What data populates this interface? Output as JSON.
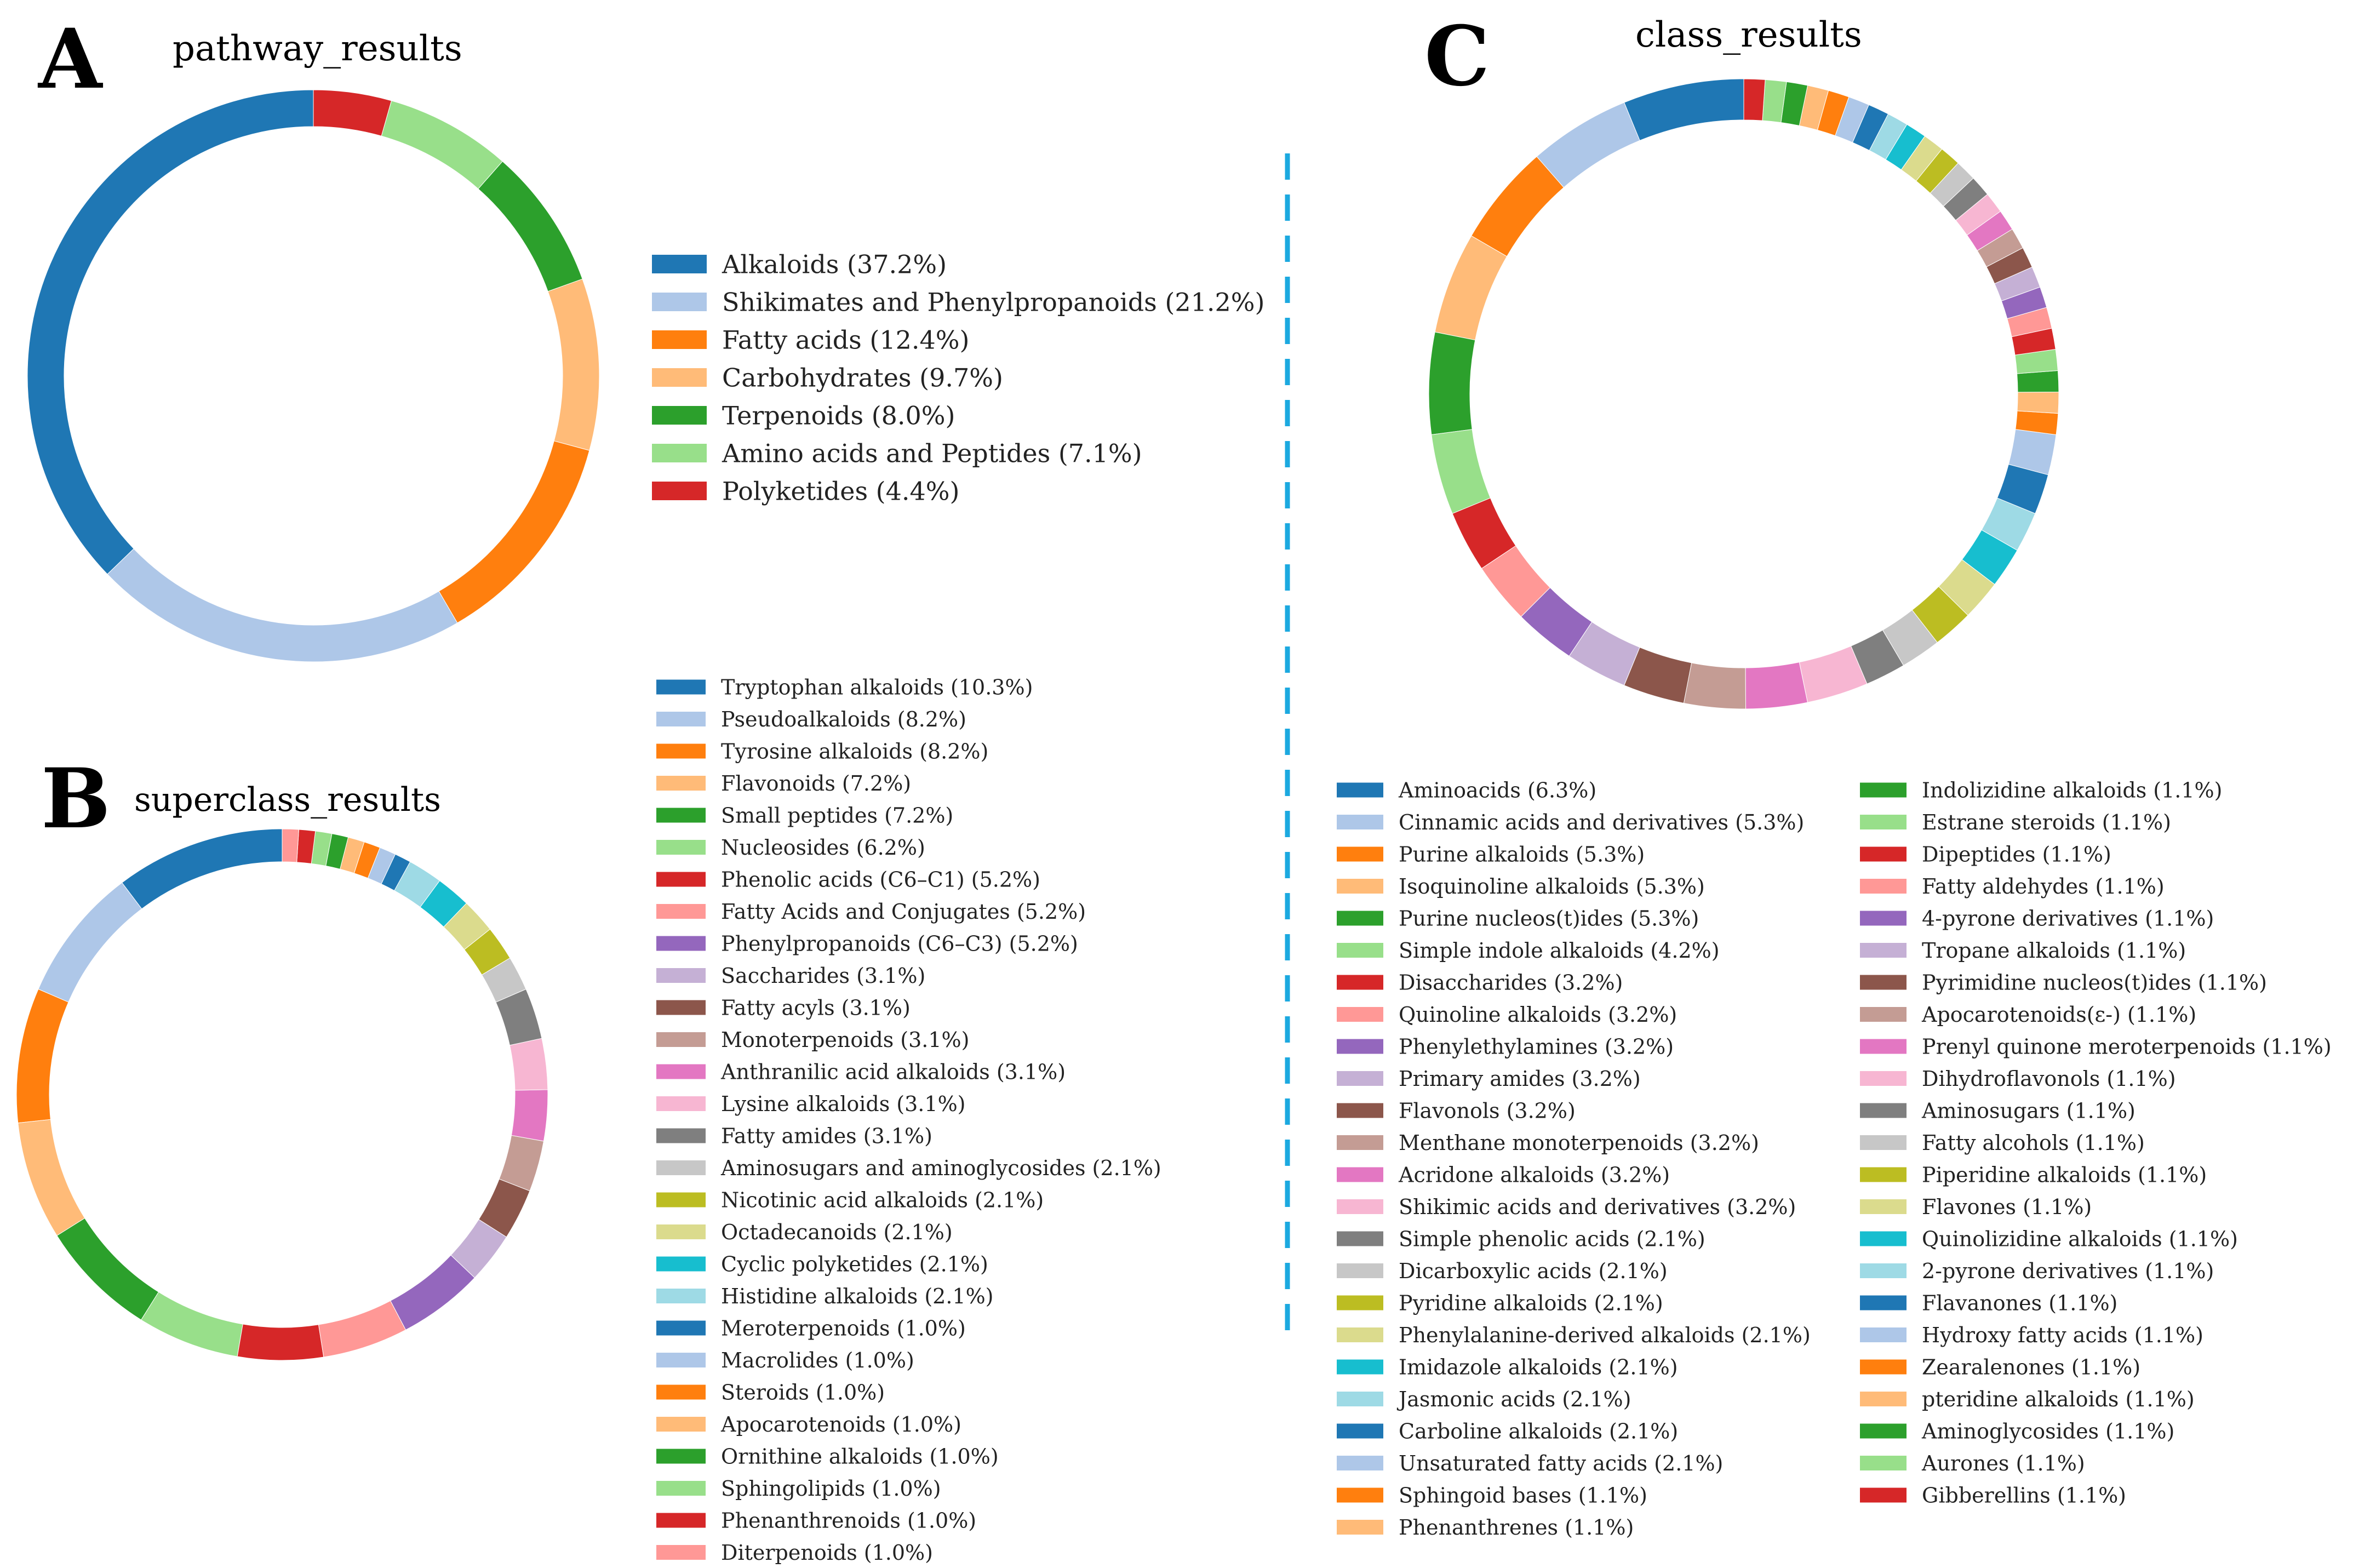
{
  "chart_data": [
    {
      "panel": "A",
      "type": "pie",
      "title": "pathway_results",
      "legend_position": "right",
      "slices": [
        {
          "label": "Alkaloids (37.2%)",
          "value": 37.2,
          "color": "#1f77b4"
        },
        {
          "label": "Shikimates and Phenylpropanoids (21.2%)",
          "value": 21.2,
          "color": "#aec7e8"
        },
        {
          "label": "Fatty acids (12.4%)",
          "value": 12.4,
          "color": "#ff7f0e"
        },
        {
          "label": "Carbohydrates (9.7%)",
          "value": 9.7,
          "color": "#ffbb78"
        },
        {
          "label": "Terpenoids (8.0%)",
          "value": 8.0,
          "color": "#2ca02c"
        },
        {
          "label": "Amino acids and Peptides (7.1%)",
          "value": 7.1,
          "color": "#98df8a"
        },
        {
          "label": "Polyketides (4.4%)",
          "value": 4.4,
          "color": "#d62728"
        }
      ]
    },
    {
      "panel": "B",
      "type": "pie",
      "title": "superclass_results",
      "legend_position": "right",
      "slices": [
        {
          "label": "Tryptophan alkaloids (10.3%)",
          "value": 10.3,
          "color": "#1f77b4"
        },
        {
          "label": "Pseudoalkaloids (8.2%)",
          "value": 8.2,
          "color": "#aec7e8"
        },
        {
          "label": "Tyrosine alkaloids (8.2%)",
          "value": 8.2,
          "color": "#ff7f0e"
        },
        {
          "label": "Flavonoids (7.2%)",
          "value": 7.2,
          "color": "#ffbb78"
        },
        {
          "label": "Small peptides (7.2%)",
          "value": 7.2,
          "color": "#2ca02c"
        },
        {
          "label": "Nucleosides (6.2%)",
          "value": 6.2,
          "color": "#98df8a"
        },
        {
          "label": "Phenolic acids (C6–C1) (5.2%)",
          "value": 5.2,
          "color": "#d62728"
        },
        {
          "label": "Fatty Acids and Conjugates (5.2%)",
          "value": 5.2,
          "color": "#ff9896"
        },
        {
          "label": "Phenylpropanoids (C6–C3) (5.2%)",
          "value": 5.2,
          "color": "#9467bd"
        },
        {
          "label": "Saccharides (3.1%)",
          "value": 3.1,
          "color": "#c5b0d5"
        },
        {
          "label": "Fatty acyls (3.1%)",
          "value": 3.1,
          "color": "#8c564b"
        },
        {
          "label": "Monoterpenoids (3.1%)",
          "value": 3.1,
          "color": "#c49c94"
        },
        {
          "label": "Anthranilic acid alkaloids (3.1%)",
          "value": 3.1,
          "color": "#e377c2"
        },
        {
          "label": "Lysine alkaloids (3.1%)",
          "value": 3.1,
          "color": "#f7b6d2"
        },
        {
          "label": "Fatty amides (3.1%)",
          "value": 3.1,
          "color": "#7f7f7f"
        },
        {
          "label": "Aminosugars and aminoglycosides (2.1%)",
          "value": 2.1,
          "color": "#c7c7c7"
        },
        {
          "label": "Nicotinic acid alkaloids (2.1%)",
          "value": 2.1,
          "color": "#bcbd22"
        },
        {
          "label": "Octadecanoids (2.1%)",
          "value": 2.1,
          "color": "#dbdb8d"
        },
        {
          "label": "Cyclic polyketides (2.1%)",
          "value": 2.1,
          "color": "#17becf"
        },
        {
          "label": "Histidine alkaloids (2.1%)",
          "value": 2.1,
          "color": "#9edae5"
        },
        {
          "label": "Meroterpenoids (1.0%)",
          "value": 1.0,
          "color": "#1f77b4"
        },
        {
          "label": "Macrolides (1.0%)",
          "value": 1.0,
          "color": "#aec7e8"
        },
        {
          "label": "Steroids (1.0%)",
          "value": 1.0,
          "color": "#ff7f0e"
        },
        {
          "label": "Apocarotenoids (1.0%)",
          "value": 1.0,
          "color": "#ffbb78"
        },
        {
          "label": "Ornithine alkaloids (1.0%)",
          "value": 1.0,
          "color": "#2ca02c"
        },
        {
          "label": "Sphingolipids (1.0%)",
          "value": 1.0,
          "color": "#98df8a"
        },
        {
          "label": "Phenanthrenoids (1.0%)",
          "value": 1.0,
          "color": "#d62728"
        },
        {
          "label": "Diterpenoids (1.0%)",
          "value": 1.0,
          "color": "#ff9896"
        }
      ]
    },
    {
      "panel": "C",
      "type": "pie",
      "title": "class_results",
      "legend_position": "bottom",
      "slices": [
        {
          "label": "Aminoacids (6.3%)",
          "value": 6.3,
          "color": "#1f77b4"
        },
        {
          "label": "Cinnamic acids and derivatives (5.3%)",
          "value": 5.3,
          "color": "#aec7e8"
        },
        {
          "label": "Purine alkaloids (5.3%)",
          "value": 5.3,
          "color": "#ff7f0e"
        },
        {
          "label": "Isoquinoline alkaloids (5.3%)",
          "value": 5.3,
          "color": "#ffbb78"
        },
        {
          "label": "Purine nucleos(t)ides (5.3%)",
          "value": 5.3,
          "color": "#2ca02c"
        },
        {
          "label": "Simple indole alkaloids (4.2%)",
          "value": 4.2,
          "color": "#98df8a"
        },
        {
          "label": "Disaccharides (3.2%)",
          "value": 3.2,
          "color": "#d62728"
        },
        {
          "label": "Quinoline alkaloids (3.2%)",
          "value": 3.2,
          "color": "#ff9896"
        },
        {
          "label": "Phenylethylamines (3.2%)",
          "value": 3.2,
          "color": "#9467bd"
        },
        {
          "label": "Primary amides (3.2%)",
          "value": 3.2,
          "color": "#c5b0d5"
        },
        {
          "label": "Flavonols (3.2%)",
          "value": 3.2,
          "color": "#8c564b"
        },
        {
          "label": "Menthane monoterpenoids (3.2%)",
          "value": 3.2,
          "color": "#c49c94"
        },
        {
          "label": "Acridone alkaloids (3.2%)",
          "value": 3.2,
          "color": "#e377c2"
        },
        {
          "label": "Shikimic acids and derivatives (3.2%)",
          "value": 3.2,
          "color": "#f7b6d2"
        },
        {
          "label": "Simple phenolic acids (2.1%)",
          "value": 2.1,
          "color": "#7f7f7f"
        },
        {
          "label": "Dicarboxylic acids (2.1%)",
          "value": 2.1,
          "color": "#c7c7c7"
        },
        {
          "label": "Pyridine alkaloids (2.1%)",
          "value": 2.1,
          "color": "#bcbd22"
        },
        {
          "label": "Phenylalanine-derived alkaloids (2.1%)",
          "value": 2.1,
          "color": "#dbdb8d"
        },
        {
          "label": "Imidazole alkaloids (2.1%)",
          "value": 2.1,
          "color": "#17becf"
        },
        {
          "label": "Jasmonic acids (2.1%)",
          "value": 2.1,
          "color": "#9edae5"
        },
        {
          "label": "Carboline alkaloids (2.1%)",
          "value": 2.1,
          "color": "#1f77b4"
        },
        {
          "label": "Unsaturated fatty acids (2.1%)",
          "value": 2.1,
          "color": "#aec7e8"
        },
        {
          "label": "Sphingoid bases (1.1%)",
          "value": 1.1,
          "color": "#ff7f0e"
        },
        {
          "label": "Phenanthrenes (1.1%)",
          "value": 1.1,
          "color": "#ffbb78"
        },
        {
          "label": "Indolizidine alkaloids (1.1%)",
          "value": 1.1,
          "color": "#2ca02c"
        },
        {
          "label": "Estrane steroids (1.1%)",
          "value": 1.1,
          "color": "#98df8a"
        },
        {
          "label": "Dipeptides (1.1%)",
          "value": 1.1,
          "color": "#d62728"
        },
        {
          "label": "Fatty aldehydes (1.1%)",
          "value": 1.1,
          "color": "#ff9896"
        },
        {
          "label": "4-pyrone derivatives (1.1%)",
          "value": 1.1,
          "color": "#9467bd"
        },
        {
          "label": "Tropane alkaloids (1.1%)",
          "value": 1.1,
          "color": "#c5b0d5"
        },
        {
          "label": "Pyrimidine nucleos(t)ides (1.1%)",
          "value": 1.1,
          "color": "#8c564b"
        },
        {
          "label": "Apocarotenoids(ε-) (1.1%)",
          "value": 1.1,
          "color": "#c49c94"
        },
        {
          "label": "Prenyl quinone meroterpenoids (1.1%)",
          "value": 1.1,
          "color": "#e377c2"
        },
        {
          "label": "Dihydroflavonols (1.1%)",
          "value": 1.1,
          "color": "#f7b6d2"
        },
        {
          "label": "Aminosugars (1.1%)",
          "value": 1.1,
          "color": "#7f7f7f"
        },
        {
          "label": "Fatty alcohols (1.1%)",
          "value": 1.1,
          "color": "#c7c7c7"
        },
        {
          "label": "Piperidine alkaloids (1.1%)",
          "value": 1.1,
          "color": "#bcbd22"
        },
        {
          "label": "Flavones (1.1%)",
          "value": 1.1,
          "color": "#dbdb8d"
        },
        {
          "label": "Quinolizidine alkaloids (1.1%)",
          "value": 1.1,
          "color": "#17becf"
        },
        {
          "label": "2-pyrone derivatives (1.1%)",
          "value": 1.1,
          "color": "#9edae5"
        },
        {
          "label": "Flavanones (1.1%)",
          "value": 1.1,
          "color": "#1f77b4"
        },
        {
          "label": "Hydroxy fatty acids (1.1%)",
          "value": 1.1,
          "color": "#aec7e8"
        },
        {
          "label": "Zearalenones (1.1%)",
          "value": 1.1,
          "color": "#ff7f0e"
        },
        {
          "label": "pteridine alkaloids (1.1%)",
          "value": 1.1,
          "color": "#ffbb78"
        },
        {
          "label": "Aminoglycosides (1.1%)",
          "value": 1.1,
          "color": "#2ca02c"
        },
        {
          "label": "Aurones (1.1%)",
          "value": 1.1,
          "color": "#98df8a"
        },
        {
          "label": "Gibberellins (1.1%)",
          "value": 1.1,
          "color": "#d62728"
        }
      ]
    }
  ],
  "divider_color": "#1ca9e0"
}
